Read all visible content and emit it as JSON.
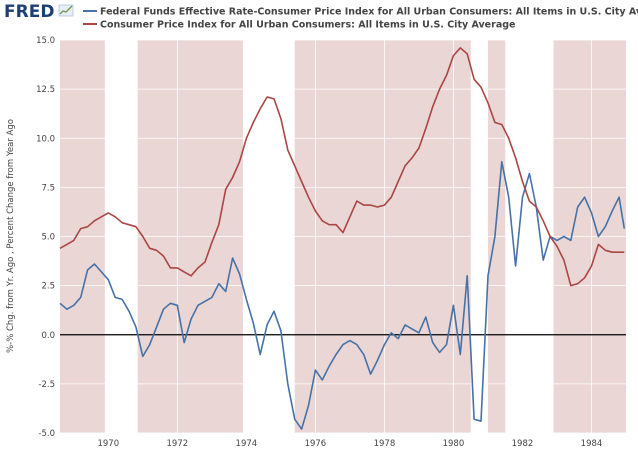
{
  "logo": {
    "text": "FRED",
    "brand_color": "#1c3f74"
  },
  "chart_data": {
    "type": "line",
    "title": "",
    "xlabel": "",
    "ylabel": "%-% Chg. from Yr. Ago , Percent Change from Year Ago",
    "xlim": [
      1968.6,
      1985.0
    ],
    "ylim": [
      -5.0,
      15.0
    ],
    "yticks": [
      -5.0,
      -2.5,
      0.0,
      2.5,
      5.0,
      7.5,
      10.0,
      12.5,
      15.0
    ],
    "ytick_labels": [
      "-5.0",
      "-2.5",
      "0.0",
      "2.5",
      "5.0",
      "7.5",
      "10.0",
      "12.5",
      "15.0"
    ],
    "xticks": [
      1970,
      1972,
      1974,
      1976,
      1978,
      1980,
      1982,
      1984
    ],
    "xtick_labels": [
      "1970",
      "1972",
      "1974",
      "1976",
      "1978",
      "1980",
      "1982",
      "1984"
    ],
    "grid": true,
    "legend_position": "top-left",
    "zero_line": 0.0,
    "shaded_periods": [
      [
        1968.6,
        1969.9
      ],
      [
        1970.85,
        1973.9
      ],
      [
        1975.4,
        1980.5
      ],
      [
        1981.0,
        1981.5
      ],
      [
        1982.9,
        1985.0
      ]
    ],
    "series": [
      {
        "name": "Federal Funds Effective Rate-Consumer Price Index for All Urban Consumers: All Items in U.S. City Average",
        "color": "#4572a7",
        "x": [
          1968.6,
          1968.8,
          1969.0,
          1969.2,
          1969.4,
          1969.6,
          1969.8,
          1970.0,
          1970.2,
          1970.4,
          1970.6,
          1970.8,
          1971.0,
          1971.2,
          1971.4,
          1971.6,
          1971.8,
          1972.0,
          1972.2,
          1972.4,
          1972.6,
          1972.8,
          1973.0,
          1973.2,
          1973.4,
          1973.6,
          1973.8,
          1974.0,
          1974.2,
          1974.4,
          1974.6,
          1974.8,
          1975.0,
          1975.2,
          1975.4,
          1975.6,
          1975.8,
          1976.0,
          1976.2,
          1976.4,
          1976.6,
          1976.8,
          1977.0,
          1977.2,
          1977.4,
          1977.6,
          1977.8,
          1978.0,
          1978.2,
          1978.4,
          1978.6,
          1978.8,
          1979.0,
          1979.2,
          1979.4,
          1979.6,
          1979.8,
          1980.0,
          1980.2,
          1980.4,
          1980.6,
          1980.8,
          1981.0,
          1981.2,
          1981.4,
          1981.6,
          1981.8,
          1982.0,
          1982.2,
          1982.4,
          1982.6,
          1982.8,
          1983.0,
          1983.2,
          1983.4,
          1983.6,
          1983.8,
          1984.0,
          1984.2,
          1984.4,
          1984.6,
          1984.8,
          1984.95
        ],
        "values": [
          1.6,
          1.3,
          1.5,
          1.9,
          3.3,
          3.6,
          3.2,
          2.8,
          1.9,
          1.8,
          1.2,
          0.4,
          -1.1,
          -0.5,
          0.4,
          1.3,
          1.6,
          1.5,
          -0.4,
          0.8,
          1.5,
          1.7,
          1.9,
          2.6,
          2.2,
          3.9,
          3.1,
          1.8,
          0.6,
          -1.0,
          0.5,
          1.2,
          0.2,
          -2.5,
          -4.3,
          -4.8,
          -3.6,
          -1.8,
          -2.3,
          -1.6,
          -1.0,
          -0.5,
          -0.3,
          -0.5,
          -1.0,
          -2.0,
          -1.3,
          -0.5,
          0.1,
          -0.2,
          0.5,
          0.3,
          0.1,
          0.9,
          -0.4,
          -0.9,
          -0.5,
          1.5,
          -1.0,
          3.0,
          -4.3,
          -4.4,
          3.0,
          5.0,
          8.8,
          7.0,
          3.5,
          7.0,
          8.2,
          6.5,
          3.8,
          5.0,
          4.8,
          5.0,
          4.8,
          6.5,
          7.0,
          6.2,
          5.0,
          5.5,
          6.3,
          7.0,
          5.4
        ]
      },
      {
        "name": "Consumer Price Index for All Urban Consumers: All Items in U.S. City Average",
        "color": "#aa4643",
        "x": [
          1968.6,
          1968.8,
          1969.0,
          1969.2,
          1969.4,
          1969.6,
          1969.8,
          1970.0,
          1970.2,
          1970.4,
          1970.6,
          1970.8,
          1971.0,
          1971.2,
          1971.4,
          1971.6,
          1971.8,
          1972.0,
          1972.2,
          1972.4,
          1972.6,
          1972.8,
          1973.0,
          1973.2,
          1973.4,
          1973.6,
          1973.8,
          1974.0,
          1974.2,
          1974.4,
          1974.6,
          1974.8,
          1975.0,
          1975.2,
          1975.4,
          1975.6,
          1975.8,
          1976.0,
          1976.2,
          1976.4,
          1976.6,
          1976.8,
          1977.0,
          1977.2,
          1977.4,
          1977.6,
          1977.8,
          1978.0,
          1978.2,
          1978.4,
          1978.6,
          1978.8,
          1979.0,
          1979.2,
          1979.4,
          1979.6,
          1979.8,
          1980.0,
          1980.2,
          1980.4,
          1980.6,
          1980.8,
          1981.0,
          1981.2,
          1981.4,
          1981.6,
          1981.8,
          1982.0,
          1982.2,
          1982.4,
          1982.6,
          1982.8,
          1983.0,
          1983.2,
          1983.4,
          1983.6,
          1983.8,
          1984.0,
          1984.2,
          1984.4,
          1984.6,
          1984.8,
          1984.95
        ],
        "values": [
          4.4,
          4.6,
          4.8,
          5.4,
          5.5,
          5.8,
          6.0,
          6.2,
          6.0,
          5.7,
          5.6,
          5.5,
          5.0,
          4.4,
          4.3,
          4.0,
          3.4,
          3.4,
          3.2,
          3.0,
          3.4,
          3.7,
          4.7,
          5.6,
          7.4,
          8.0,
          8.8,
          10.0,
          10.8,
          11.5,
          12.1,
          12.0,
          11.0,
          9.4,
          8.6,
          7.8,
          7.0,
          6.3,
          5.8,
          5.6,
          5.6,
          5.2,
          6.0,
          6.8,
          6.6,
          6.6,
          6.5,
          6.6,
          7.0,
          7.8,
          8.6,
          9.0,
          9.5,
          10.5,
          11.6,
          12.5,
          13.2,
          14.2,
          14.6,
          14.3,
          13.0,
          12.6,
          11.8,
          10.8,
          10.7,
          10.0,
          9.0,
          7.8,
          6.8,
          6.5,
          5.8,
          5.0,
          4.5,
          3.8,
          2.5,
          2.6,
          2.9,
          3.5,
          4.6,
          4.3,
          4.2,
          4.2,
          4.2
        ]
      }
    ]
  }
}
